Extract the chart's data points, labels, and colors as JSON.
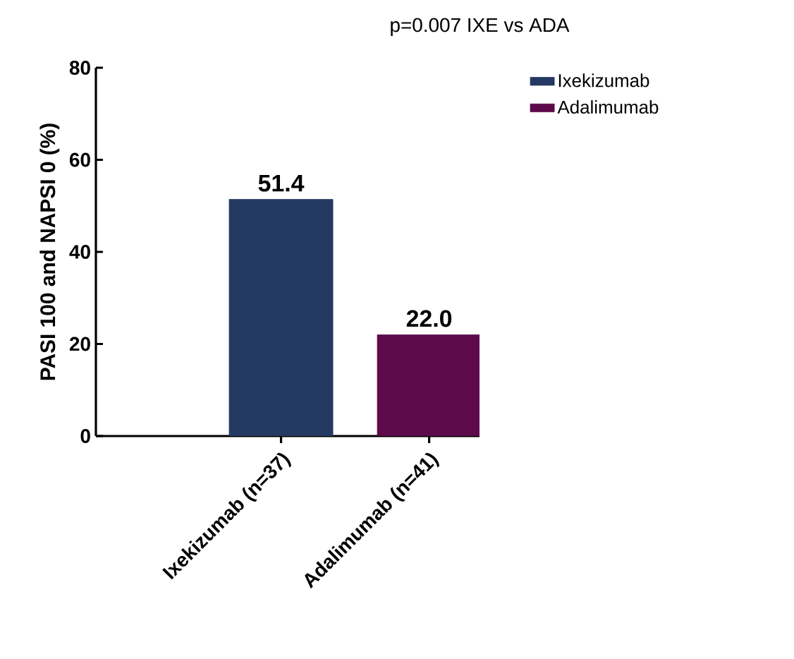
{
  "chart_data": {
    "type": "bar",
    "title": "p=0.007 IXE vs ADA",
    "ylabel": "PASI 100 and NAPSI 0 (%)",
    "categories": [
      "Ixekizumab (n=37)",
      "Adalimumab (n=41)"
    ],
    "series": [
      {
        "name": "Ixekizumab",
        "color": "#243a63",
        "values": [
          51.4,
          null
        ],
        "value_labels": [
          "51.4",
          null
        ]
      },
      {
        "name": "Adalimumab",
        "color": "#5c0a4a",
        "values": [
          null,
          22.0
        ],
        "value_labels": [
          null,
          "22.0"
        ]
      }
    ],
    "ylim": [
      0,
      80
    ],
    "yticks": [
      0,
      20,
      40,
      60,
      80
    ],
    "grid": false,
    "legend": "top right"
  }
}
